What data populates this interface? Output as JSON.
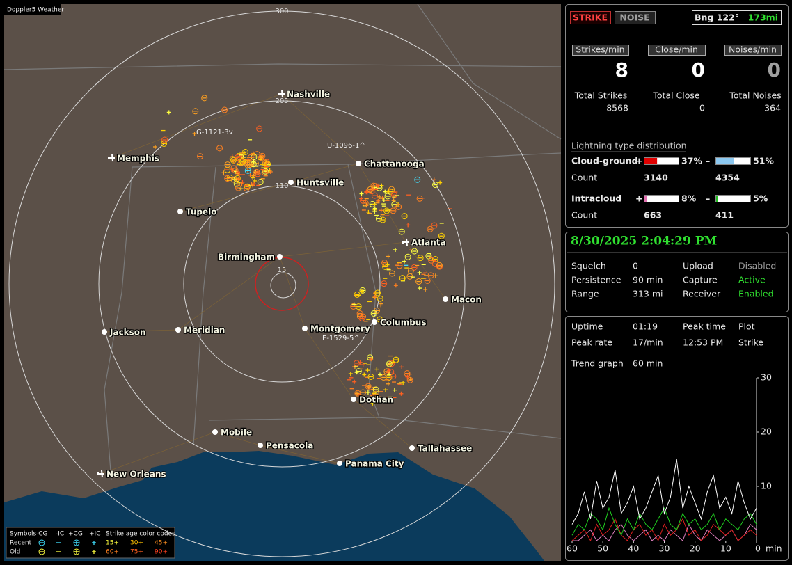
{
  "app_title": "Doppler5 Weather",
  "map": {
    "rings": [
      "300",
      "205",
      "110",
      "15"
    ],
    "cities": [
      "Nashville",
      "Memphis",
      "Chattanooga",
      "Huntsville",
      "Tupelo",
      "Atlanta",
      "Birmingham",
      "Macon",
      "Columbus",
      "Jackson",
      "Meridian",
      "Montgomery",
      "Dothan",
      "Mobile",
      "Pensacola",
      "Tallahassee",
      "Panama City",
      "New Orleans"
    ],
    "storm_ids": [
      "G-1121-3v",
      "U-1096-1^",
      "E-1529-5^"
    ]
  },
  "legend": {
    "headers": [
      "Symbols",
      "-CG",
      "-IC",
      "+CG",
      "+IC",
      "Strike age color codes"
    ],
    "rows": [
      {
        "label": "Recent",
        "ages": [
          "15+",
          "30+",
          "45+"
        ]
      },
      {
        "label": "Old",
        "ages": [
          "60+",
          "75+",
          "90+"
        ]
      }
    ]
  },
  "status": {
    "strike": "STRIKE",
    "noise": "NOISE",
    "bearing": "Bng 122°",
    "distance": "173mi"
  },
  "rates": [
    {
      "label": "Strikes/min",
      "value": 8
    },
    {
      "label": "Close/min",
      "value": 0
    },
    {
      "label": "Noises/min",
      "value": 0
    }
  ],
  "totals": [
    {
      "label": "Total Strikes",
      "value": 8568
    },
    {
      "label": "Total Close",
      "value": 0
    },
    {
      "label": "Total Noises",
      "value": 364
    }
  ],
  "distribution": {
    "title": "Lightning type distribution",
    "count_label": "Count",
    "rows": [
      {
        "label": "Cloud-ground",
        "plus": {
          "value": 37,
          "label": "37%"
        },
        "minus": {
          "value": 51,
          "label": "51%"
        },
        "plus_count": 3140,
        "minus_count": 4354,
        "plus_color": "#e00000",
        "minus_color": "#8cc8f0"
      },
      {
        "label": "Intracloud",
        "plus": {
          "value": 8,
          "label": "8%"
        },
        "minus": {
          "value": 5,
          "label": "5%"
        },
        "plus_count": 663,
        "minus_count": 411,
        "plus_color": "#e070b0",
        "minus_color": "#20c020"
      }
    ]
  },
  "datetime": "8/30/2025 2:04:29 PM",
  "settings": [
    {
      "label": "Squelch",
      "value": 0,
      "label2": "Upload",
      "value2": "Disabled",
      "value2_color": "#a0a0a0"
    },
    {
      "label": "Persistence",
      "value": "90 min",
      "label2": "Capture",
      "value2": "Active",
      "value2_color": "#30e030"
    },
    {
      "label": "Range",
      "value": "313 mi",
      "label2": "Receiver",
      "value2": "Enabled",
      "value2_color": "#30e030"
    }
  ],
  "stats": [
    [
      "Uptime",
      "01:19",
      "Peak time",
      "Plot"
    ],
    [
      "Peak rate",
      "17/min",
      "12:53 PM",
      "Strike"
    ],
    [
      "Trend graph",
      "60 min"
    ]
  ],
  "chart_data": {
    "type": "line",
    "x": [
      60,
      58,
      56,
      54,
      52,
      50,
      48,
      46,
      44,
      42,
      40,
      38,
      36,
      34,
      32,
      30,
      28,
      26,
      24,
      22,
      20,
      18,
      16,
      14,
      12,
      10,
      8,
      6,
      4,
      2,
      0
    ],
    "xlim": [
      60,
      0
    ],
    "xticks": [
      60,
      50,
      40,
      30,
      20,
      10,
      0
    ],
    "xlabel": "min",
    "ylim": [
      0,
      30
    ],
    "yticks": [
      10,
      20,
      30
    ],
    "series": [
      {
        "color": "#ffffff",
        "values": [
          3,
          5,
          9,
          4,
          11,
          6,
          8,
          13,
          5,
          7,
          10,
          4,
          6,
          9,
          12,
          5,
          8,
          15,
          6,
          10,
          7,
          4,
          9,
          12,
          6,
          8,
          5,
          11,
          7,
          4,
          6
        ]
      },
      {
        "color": "#20d020",
        "values": [
          1,
          3,
          2,
          5,
          4,
          2,
          6,
          3,
          1,
          4,
          2,
          5,
          3,
          2,
          4,
          6,
          3,
          2,
          5,
          3,
          4,
          2,
          3,
          5,
          2,
          4,
          3,
          2,
          4,
          5,
          3
        ]
      },
      {
        "color": "#e02020",
        "values": [
          0,
          1,
          2,
          0,
          3,
          1,
          2,
          4,
          1,
          0,
          2,
          3,
          1,
          2,
          0,
          3,
          1,
          2,
          4,
          1,
          2,
          0,
          1,
          3,
          2,
          1,
          2,
          0,
          1,
          2,
          1
        ]
      },
      {
        "color": "#e080c0",
        "values": [
          0,
          0,
          1,
          2,
          0,
          1,
          0,
          2,
          3,
          1,
          0,
          1,
          2,
          0,
          1,
          0,
          2,
          1,
          0,
          3,
          1,
          0,
          2,
          1,
          0,
          1,
          2,
          0,
          1,
          3,
          2
        ]
      }
    ]
  }
}
